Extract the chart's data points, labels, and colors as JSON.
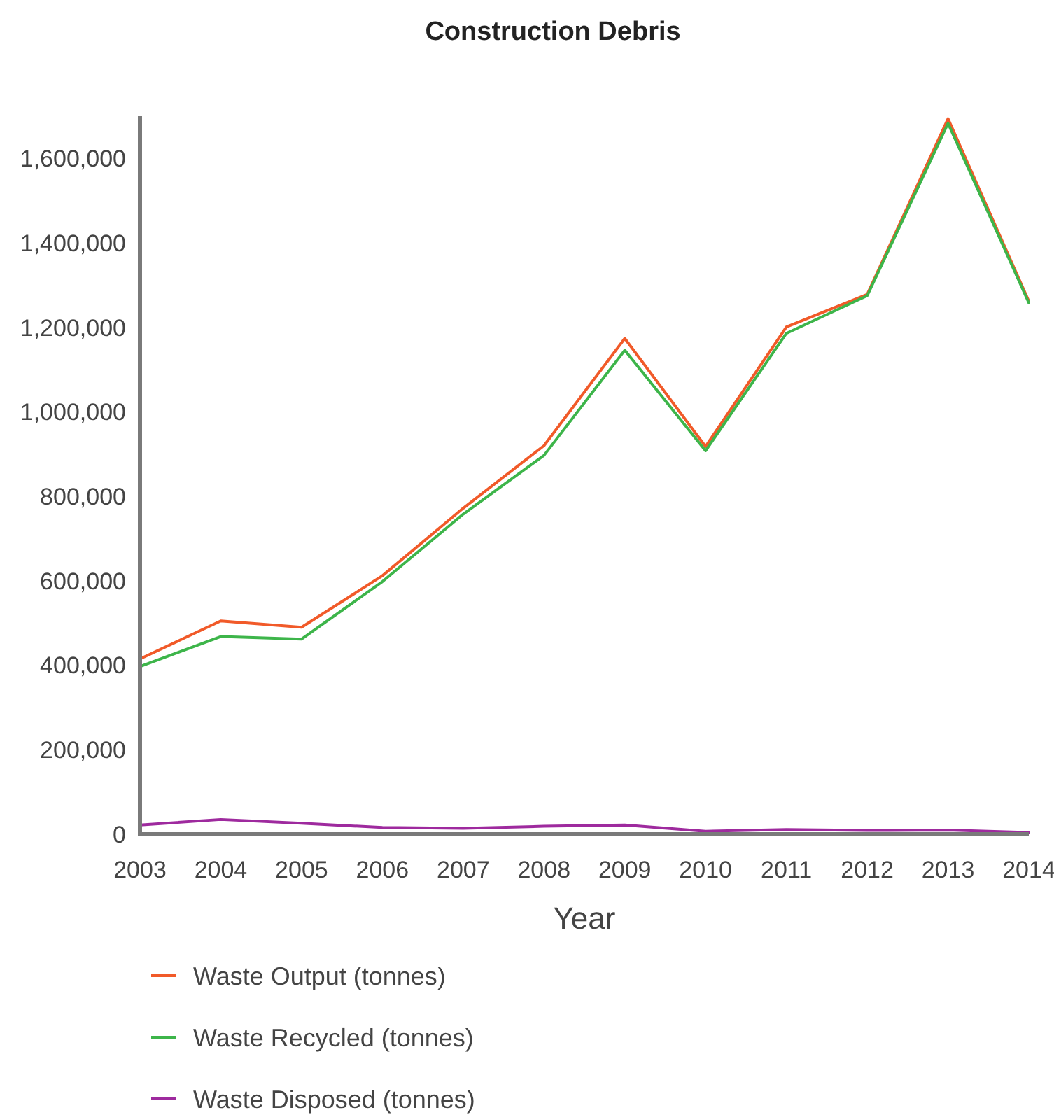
{
  "chart_data": {
    "type": "line",
    "title": "Construction Debris",
    "xlabel": "Year",
    "x": [
      2003,
      2004,
      2005,
      2006,
      2007,
      2008,
      2009,
      2010,
      2011,
      2012,
      2013,
      2014
    ],
    "xlim": [
      2003,
      2014
    ],
    "xticks": [
      2003,
      2004,
      2005,
      2006,
      2007,
      2008,
      2009,
      2010,
      2011,
      2012,
      2013,
      2014
    ],
    "ylim": [
      0,
      1700000
    ],
    "yticks": [
      {
        "value": 0,
        "label": "0"
      },
      {
        "value": 200000,
        "label": "200,000"
      },
      {
        "value": 400000,
        "label": "400,000"
      },
      {
        "value": 600000,
        "label": "600,000"
      },
      {
        "value": 800000,
        "label": "800,000"
      },
      {
        "value": 1000000,
        "label": "1,000,000"
      },
      {
        "value": 1200000,
        "label": "1,200,000"
      },
      {
        "value": 1400000,
        "label": "1,400,000"
      },
      {
        "value": 1600000,
        "label": "1,600,000"
      }
    ],
    "series": [
      {
        "name": "Waste Output (tonnes)",
        "color": "#f15a29",
        "values": [
          415000,
          505000,
          490000,
          612000,
          772000,
          920000,
          1174000,
          918000,
          1201000,
          1278000,
          1694000,
          1262000
        ]
      },
      {
        "name": "Waste Recycled (tonnes)",
        "color": "#3db54a",
        "values": [
          397000,
          468000,
          462000,
          598000,
          758000,
          897000,
          1146000,
          908000,
          1186000,
          1275000,
          1683000,
          1258000
        ]
      },
      {
        "name": "Waste Disposed (tonnes)",
        "color": "#9e2a9e",
        "values": [
          22000,
          35000,
          26000,
          16000,
          14000,
          19000,
          22000,
          7000,
          11000,
          9000,
          10000,
          4000
        ]
      }
    ],
    "legend": "bottom left"
  }
}
